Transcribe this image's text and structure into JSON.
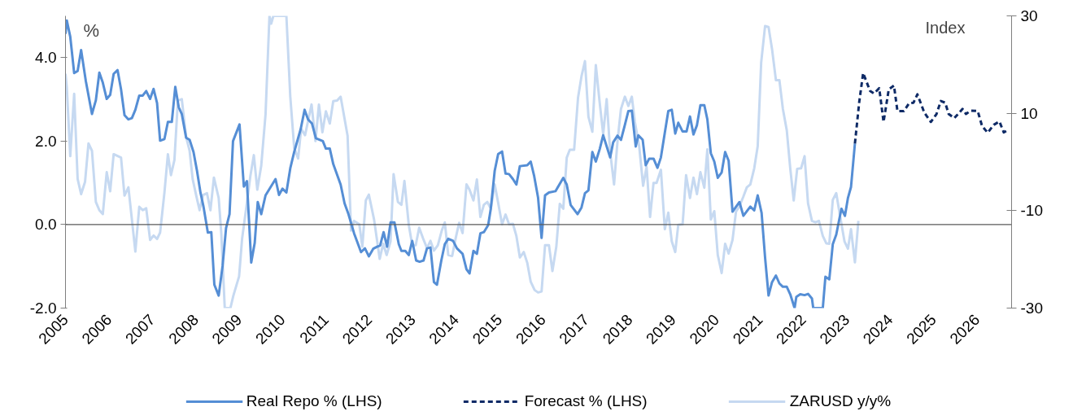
{
  "chart_data": {
    "type": "line",
    "ylabel": "%",
    "y2label": "Index",
    "xlim": [
      2005.0,
      2026.8
    ],
    "xticks": [
      2005,
      2006,
      2007,
      2008,
      2009,
      2010,
      2011,
      2012,
      2013,
      2014,
      2015,
      2016,
      2017,
      2018,
      2019,
      2020,
      2021,
      2022,
      2023,
      2024,
      2025,
      2026
    ],
    "ylim": [
      -2,
      5
    ],
    "yticks": [
      {
        "value": -2,
        "label": "-2.0"
      },
      {
        "value": 0,
        "label": "0.0"
      },
      {
        "value": 2,
        "label": "2.0"
      },
      {
        "value": 4,
        "label": "4.0"
      }
    ],
    "y2lim": [
      -30,
      30
    ],
    "y2ticks": [
      -30,
      -10,
      10,
      30
    ],
    "grid": false,
    "legend": "bottom",
    "ref_lines": [
      {
        "axis": "y",
        "value": 0,
        "color": "#595959"
      }
    ],
    "series": [
      {
        "name": "ZARUSD y/y%",
        "color": "#c6d9f1",
        "axis": "y2",
        "line_style": "solid",
        "x": [
          2005.0,
          2005.03,
          2005.11,
          2005.2,
          2005.28,
          2005.36,
          2005.45,
          2005.53,
          2005.61,
          2005.7,
          2005.78,
          2005.86,
          2005.95,
          2006.03,
          2006.11,
          2006.28,
          2006.36,
          2006.45,
          2006.61,
          2006.7,
          2006.78,
          2006.86,
          2006.95,
          2007.03,
          2007.11,
          2007.18,
          2007.28,
          2007.36,
          2007.43,
          2007.51,
          2007.59,
          2007.68,
          2007.78,
          2007.86,
          2007.93,
          2008.01,
          2008.09,
          2008.17,
          2008.26,
          2008.34,
          2008.42,
          2008.53,
          2008.59,
          2008.67,
          2008.8,
          2008.87,
          2009.0,
          2009.07,
          2009.17,
          2009.26,
          2009.34,
          2009.42,
          2009.51,
          2009.61,
          2009.7,
          2009.74,
          2009.79,
          2009.83,
          2010.09,
          2010.18,
          2010.27,
          2010.36,
          2010.43,
          2010.52,
          2010.67,
          2010.76,
          2010.84,
          2010.92,
          2011.0,
          2011.09,
          2011.17,
          2011.26,
          2011.34,
          2011.5,
          2011.58,
          2011.65,
          2011.77,
          2011.84,
          2011.92,
          2011.99,
          2012.11,
          2012.24,
          2012.32,
          2012.4,
          2012.49,
          2012.56,
          2012.66,
          2012.74,
          2012.81,
          2012.91,
          2012.99,
          2013.07,
          2013.15,
          2013.24,
          2013.33,
          2013.41,
          2013.49,
          2013.58,
          2013.67,
          2013.74,
          2013.82,
          2013.91,
          2013.99,
          2014.07,
          2014.15,
          2014.24,
          2014.31,
          2014.4,
          2014.48,
          2014.56,
          2014.64,
          2014.72,
          2014.8,
          2014.89,
          2014.97,
          2015.06,
          2015.14,
          2015.22,
          2015.31,
          2015.39,
          2015.47,
          2015.56,
          2015.64,
          2015.72,
          2015.81,
          2015.89,
          2015.97,
          2016.05,
          2016.14,
          2016.22,
          2016.31,
          2016.39,
          2016.47,
          2016.55,
          2016.62,
          2016.72,
          2016.81,
          2016.89,
          2016.97,
          2017.05,
          2017.14,
          2017.22,
          2017.31,
          2017.39,
          2017.47,
          2017.55,
          2017.64,
          2017.72,
          2017.8,
          2017.89,
          2017.97,
          2018.05,
          2018.12,
          2018.22,
          2018.31,
          2018.39,
          2018.47,
          2018.55,
          2018.62,
          2018.72,
          2018.81,
          2018.89,
          2018.97,
          2019.05,
          2019.12,
          2019.22,
          2019.3,
          2019.39,
          2019.47,
          2019.55,
          2019.63,
          2019.72,
          2019.79,
          2019.87,
          2019.95,
          2020.03,
          2020.12,
          2020.2,
          2020.28,
          2020.37,
          2020.45,
          2020.53,
          2020.62,
          2020.7,
          2020.78,
          2020.87,
          2020.95,
          2021.03,
          2021.12,
          2021.2,
          2021.28,
          2021.37,
          2021.45,
          2021.53,
          2021.62,
          2021.7,
          2021.78,
          2021.86,
          2021.95,
          2022.03,
          2022.11,
          2022.2,
          2022.28,
          2022.36,
          2022.45,
          2022.53,
          2022.6,
          2022.68,
          2022.76,
          2022.84,
          2022.95,
          2023.03,
          2023.1,
          2023.19,
          2023.27
        ],
        "values": [
          18.1,
          15.4,
          1.2,
          14.0,
          -3.5,
          -6.6,
          -4.1,
          3.8,
          2.3,
          -8.2,
          -9.9,
          -10.7,
          -2.1,
          -6.0,
          1.6,
          0.9,
          -6.9,
          -5.2,
          -18.4,
          -9.2,
          -9.9,
          -9.5,
          -16.0,
          -15.1,
          -15.8,
          -14.5,
          -6.3,
          1.6,
          -2.7,
          0.4,
          12.6,
          12.9,
          5.1,
          2.3,
          -3.5,
          -6.8,
          -9.9,
          -6.8,
          -6.4,
          -9.9,
          -3.2,
          -7.4,
          -14.6,
          -30,
          -30,
          -27.4,
          -23.5,
          -15.7,
          -9.1,
          -2.9,
          1.4,
          -5.7,
          -0.8,
          9.8,
          30,
          28.4,
          30,
          30,
          30,
          13.4,
          2.9,
          0.7,
          6.8,
          5.5,
          11.8,
          4.3,
          11.8,
          6.1,
          10.4,
          7.9,
          12.5,
          12.6,
          13.4,
          5.4,
          -14.1,
          -12.1,
          -12.8,
          -17.4,
          -7.9,
          -6.7,
          -11.8,
          -19.9,
          -16.8,
          -19.1,
          -16.3,
          -2.5,
          -8.2,
          -8.8,
          -3.9,
          -12.9,
          -17.1,
          -17.1,
          -13.5,
          -15.7,
          -17.7,
          -16.2,
          -18.2,
          -17.1,
          -14.1,
          -12.4,
          -19.1,
          -19.3,
          -15.7,
          -12.5,
          -14.6,
          -4.6,
          -5.7,
          -7.9,
          -3.6,
          -11.3,
          -8.8,
          -8.2,
          -9.6,
          -4.6,
          -8.4,
          -12.8,
          -10.8,
          -12.8,
          -12.7,
          -15.2,
          -19.6,
          -18.5,
          -20.7,
          -24.6,
          -26.3,
          -26.8,
          -26.6,
          -17.1,
          -17.1,
          -22.4,
          -17.4,
          -8.6,
          -9.6,
          0.9,
          2.5,
          2.5,
          13.2,
          17.6,
          20.7,
          9.3,
          6.2,
          19.9,
          12.1,
          5.7,
          12.9,
          2.1,
          -4.6,
          4.3,
          10.9,
          13.4,
          11.5,
          13.4,
          8.2,
          3.2,
          -4.9,
          -1.0,
          -11.3,
          -4.3,
          -4.3,
          -1.6,
          -13.8,
          -10.4,
          -16.3,
          -18.5,
          -12.9,
          -12.8,
          -2.7,
          -7.4,
          -3.2,
          -6.6,
          -2.1,
          -5.3,
          2.6,
          -11.8,
          -10.1,
          -19.1,
          -22.8,
          -16.8,
          -18.8,
          -16.0,
          -10.2,
          -9.1,
          -7.1,
          -5.2,
          -4.6,
          -1.3,
          3.2,
          20.4,
          27.9,
          27.7,
          23.2,
          16.8,
          16.8,
          10.9,
          6.5,
          -1.3,
          -7.9,
          -1.4,
          -1.3,
          1.2,
          -8.5,
          -12.1,
          -12.4,
          -12.1,
          -15.2,
          -16.7,
          -16.8,
          -7.8,
          -6.4,
          -10.7,
          -16.3,
          -17.8,
          -13.8,
          -20.6,
          -12.1
        ]
      },
      {
        "name": "Real Repo % (LHS)",
        "color": "#558ed5",
        "line_style": "solid",
        "x": [
          2005.0,
          2005.03,
          2005.11,
          2005.2,
          2005.28,
          2005.36,
          2005.47,
          2005.61,
          2005.7,
          2005.78,
          2005.86,
          2005.95,
          2006.03,
          2006.11,
          2006.2,
          2006.28,
          2006.36,
          2006.45,
          2006.53,
          2006.61,
          2006.7,
          2006.78,
          2006.86,
          2006.95,
          2007.03,
          2007.11,
          2007.18,
          2007.28,
          2007.36,
          2007.45,
          2007.53,
          2007.61,
          2007.68,
          2007.78,
          2007.86,
          2007.95,
          2008.03,
          2008.11,
          2008.18,
          2008.28,
          2008.36,
          2008.43,
          2008.53,
          2008.62,
          2008.7,
          2008.78,
          2008.86,
          2009.01,
          2009.11,
          2009.18,
          2009.28,
          2009.36,
          2009.43,
          2009.51,
          2009.61,
          2009.84,
          2009.92,
          2010.0,
          2010.09,
          2010.18,
          2010.27,
          2010.42,
          2010.51,
          2010.59,
          2010.68,
          2010.77,
          2010.93,
          2011.0,
          2011.09,
          2011.17,
          2011.34,
          2011.43,
          2011.52,
          2011.65,
          2011.81,
          2011.9,
          2011.99,
          2012.09,
          2012.18,
          2012.25,
          2012.33,
          2012.41,
          2012.49,
          2012.58,
          2012.68,
          2012.74,
          2012.83,
          2012.91,
          2012.99,
          2013.08,
          2013.16,
          2013.25,
          2013.33,
          2013.41,
          2013.49,
          2013.56,
          2013.66,
          2013.74,
          2013.82,
          2013.93,
          2014.02,
          2014.15,
          2014.24,
          2014.31,
          2014.4,
          2014.48,
          2014.56,
          2014.64,
          2014.74,
          2014.8,
          2014.89,
          2014.97,
          2015.06,
          2015.14,
          2015.22,
          2015.31,
          2015.39,
          2015.47,
          2015.64,
          2015.72,
          2015.8,
          2015.89,
          2015.97,
          2016.05,
          2016.14,
          2016.29,
          2016.47,
          2016.55,
          2016.64,
          2016.8,
          2016.89,
          2016.97,
          2017.05,
          2017.14,
          2017.22,
          2017.31,
          2017.39,
          2017.55,
          2017.62,
          2017.72,
          2017.8,
          2017.89,
          2017.97,
          2018.05,
          2018.14,
          2018.2,
          2018.3,
          2018.37,
          2018.45,
          2018.55,
          2018.64,
          2018.72,
          2018.81,
          2018.89,
          2018.97,
          2019.05,
          2019.12,
          2019.22,
          2019.31,
          2019.39,
          2019.47,
          2019.55,
          2019.63,
          2019.72,
          2019.79,
          2019.87,
          2019.95,
          2020.03,
          2020.12,
          2020.2,
          2020.28,
          2020.37,
          2020.53,
          2020.62,
          2020.78,
          2020.87,
          2020.95,
          2021.04,
          2021.12,
          2021.2,
          2021.28,
          2021.37,
          2021.45,
          2021.53,
          2021.62,
          2021.7,
          2021.8,
          2021.84,
          2021.93,
          2022.03,
          2022.11,
          2022.2,
          2022.23,
          2022.45,
          2022.51,
          2022.6,
          2022.68,
          2022.76,
          2022.84,
          2022.88,
          2022.96,
          2023.03,
          2023.1,
          2023.19
        ],
        "values": [
          4.57,
          4.89,
          4.5,
          3.63,
          3.68,
          4.18,
          3.43,
          2.65,
          2.98,
          3.64,
          3.4,
          3.01,
          3.11,
          3.61,
          3.7,
          3.24,
          2.62,
          2.52,
          2.55,
          2.75,
          3.09,
          3.09,
          3.2,
          3.01,
          3.25,
          2.91,
          2.01,
          2.05,
          2.46,
          2.46,
          3.3,
          2.81,
          2.65,
          2.08,
          2.03,
          1.74,
          1.29,
          0.77,
          0.43,
          -0.19,
          -0.18,
          -1.44,
          -1.7,
          -0.99,
          -0.08,
          0.25,
          2.0,
          2.4,
          0.91,
          1.04,
          -0.91,
          -0.44,
          0.54,
          0.25,
          0.7,
          1.09,
          0.71,
          0.86,
          0.77,
          1.35,
          1.74,
          2.29,
          2.75,
          2.52,
          2.42,
          2.07,
          2.0,
          1.82,
          1.82,
          1.45,
          0.96,
          0.51,
          0.25,
          -0.21,
          -0.66,
          -0.57,
          -0.76,
          -0.58,
          -0.53,
          -0.5,
          -0.18,
          -0.53,
          0.05,
          0.05,
          -0.47,
          -0.63,
          -0.63,
          -0.73,
          -0.39,
          -0.86,
          -0.89,
          -0.86,
          -0.57,
          -0.55,
          -1.38,
          -1.44,
          -0.86,
          -0.47,
          -0.34,
          -0.39,
          -0.57,
          -0.7,
          -1.07,
          -1.17,
          -0.63,
          -0.7,
          -0.21,
          -0.18,
          -0.01,
          0.38,
          1.29,
          1.69,
          1.75,
          1.22,
          1.21,
          1.09,
          0.96,
          1.4,
          1.42,
          1.51,
          1.16,
          0.64,
          -0.32,
          0.7,
          0.77,
          0.8,
          1.12,
          0.96,
          0.47,
          0.25,
          0.41,
          0.75,
          0.82,
          1.74,
          1.51,
          1.81,
          2.14,
          1.61,
          1.97,
          2.13,
          2.03,
          2.39,
          2.72,
          2.73,
          1.87,
          2.14,
          2.03,
          1.42,
          1.58,
          1.58,
          1.36,
          1.61,
          2.2,
          2.72,
          2.75,
          2.18,
          2.44,
          2.23,
          2.23,
          2.59,
          2.16,
          2.38,
          2.86,
          2.86,
          2.52,
          1.71,
          1.51,
          1.12,
          1.25,
          1.74,
          1.53,
          0.31,
          0.54,
          0.21,
          0.43,
          0.34,
          0.7,
          0.28,
          -0.79,
          -1.7,
          -1.38,
          -1.22,
          -1.41,
          -1.49,
          -1.49,
          -1.67,
          -2.0,
          -1.73,
          -1.67,
          -1.69,
          -1.66,
          -1.77,
          -2.0,
          -2.0,
          -1.25,
          -1.31,
          -0.47,
          -0.24,
          0.18,
          0.38,
          0.21,
          0.64,
          0.9,
          1.94
        ]
      },
      {
        "name": "Forecast % (LHS)",
        "color": "#0e2a66",
        "line_style": "dashed",
        "x": [
          2023.19,
          2023.29,
          2023.38,
          2023.54,
          2023.63,
          2023.75,
          2023.85,
          2023.97,
          2024.09,
          2024.17,
          2024.32,
          2024.44,
          2024.54,
          2024.63,
          2024.79,
          2024.94,
          2025.07,
          2025.17,
          2025.27,
          2025.35,
          2025.48,
          2025.67,
          2025.75,
          2025.86,
          2026.02,
          2026.12,
          2026.25,
          2026.39,
          2026.52,
          2026.62,
          2026.71
        ],
        "values": [
          1.94,
          2.94,
          3.63,
          3.2,
          3.14,
          3.27,
          2.46,
          3.24,
          3.33,
          2.72,
          2.72,
          2.91,
          2.92,
          3.12,
          2.68,
          2.46,
          2.65,
          2.96,
          2.92,
          2.65,
          2.55,
          2.77,
          2.65,
          2.73,
          2.72,
          2.36,
          2.2,
          2.39,
          2.47,
          2.21,
          2.26
        ]
      }
    ]
  }
}
